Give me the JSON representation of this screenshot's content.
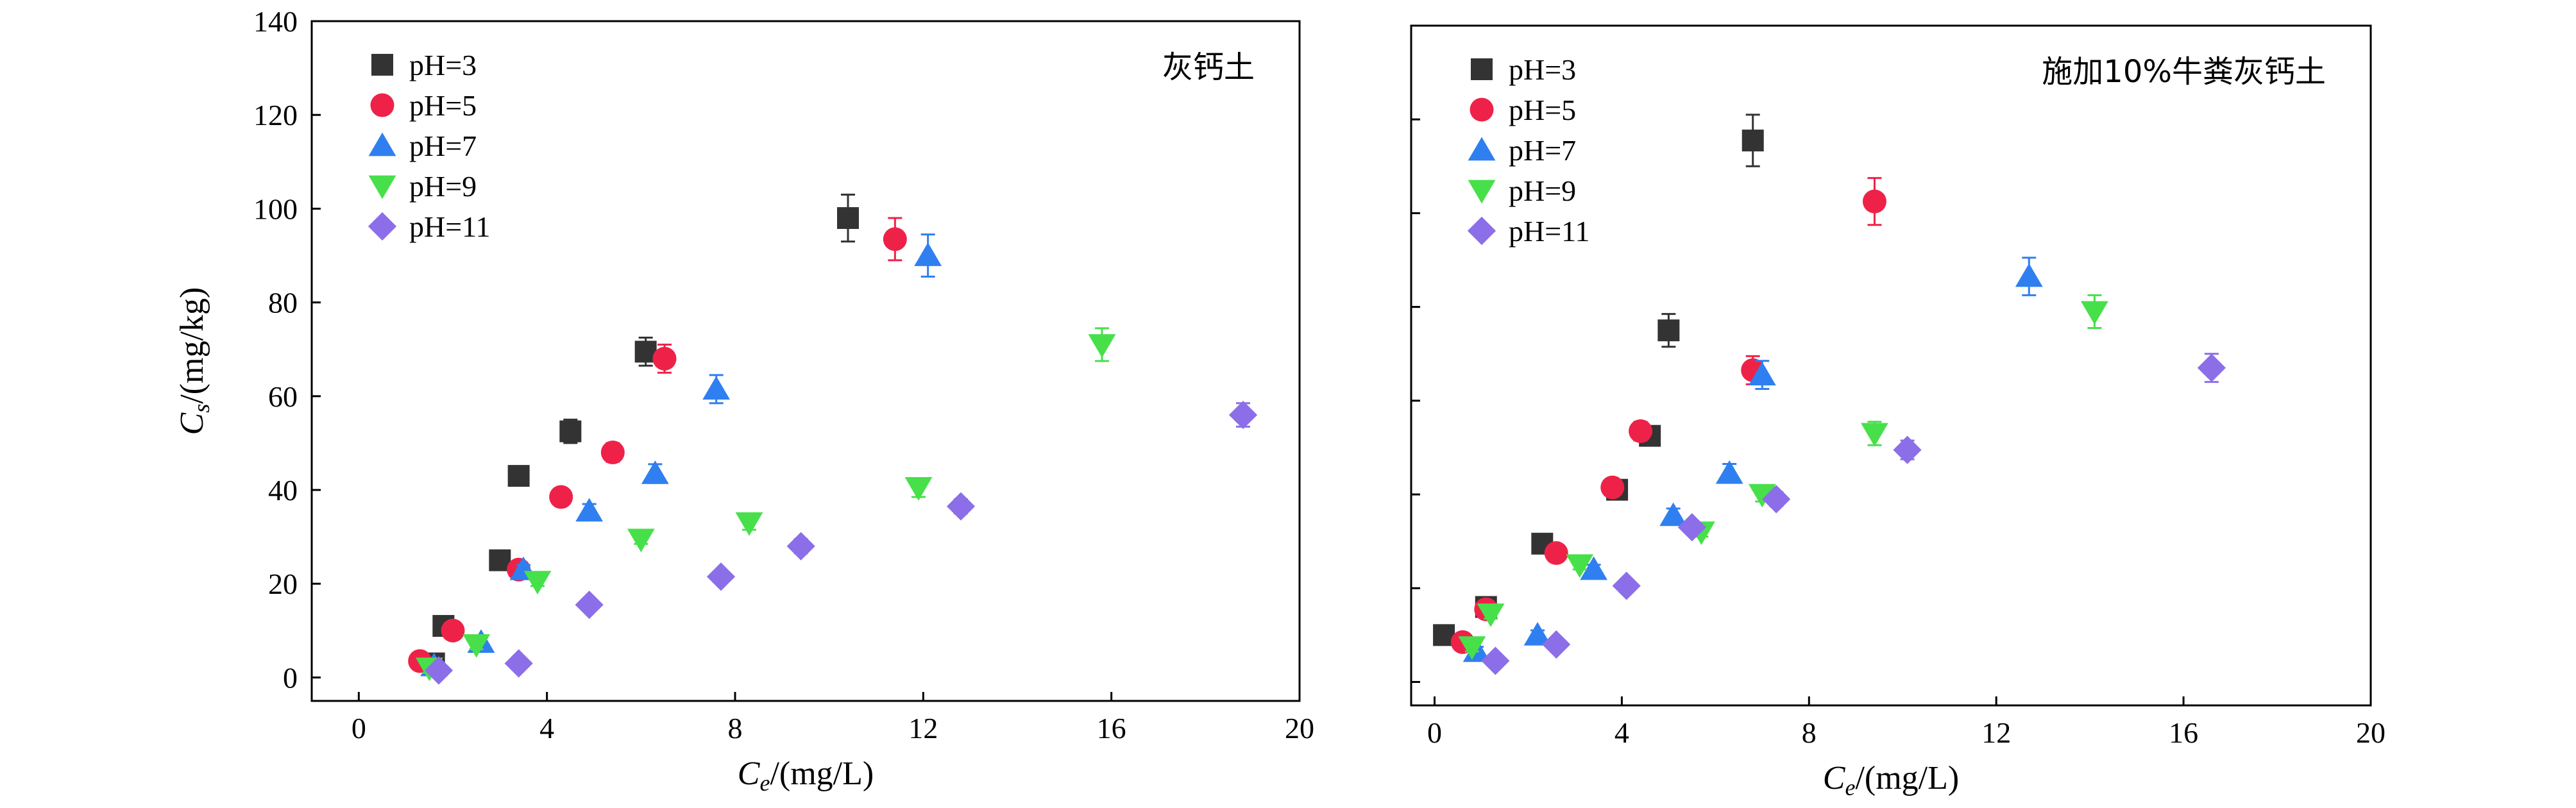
{
  "chart_data": [
    {
      "type": "scatter",
      "title": "灰钙土",
      "xlabel": "Ce/(mg/L)",
      "ylabel": "Cs/(mg/kg)",
      "xlim": [
        -1,
        20
      ],
      "ylim": [
        -5,
        140
      ],
      "x_ticks": [
        0,
        4,
        8,
        12,
        16,
        20
      ],
      "y_ticks": [
        0,
        20,
        40,
        60,
        80,
        100,
        120,
        140
      ],
      "legend_position": "top-left",
      "series": [
        {
          "name": "pH=3",
          "marker": "square",
          "color": "#333333",
          "x": [
            1.6,
            1.8,
            3.0,
            3.4,
            4.5,
            6.1,
            10.4
          ],
          "y": [
            3.0,
            11.0,
            25.0,
            43.0,
            52.5,
            69.5,
            98.0
          ],
          "err": [
            1,
            1,
            1,
            1.5,
            2.5,
            3,
            5
          ]
        },
        {
          "name": "pH=5",
          "marker": "circle",
          "color": "#ee2248",
          "x": [
            1.3,
            2.0,
            3.4,
            4.3,
            5.4,
            6.5,
            11.4
          ],
          "y": [
            3.5,
            10.0,
            23.0,
            38.5,
            48.0,
            68.0,
            93.5
          ],
          "err": [
            1,
            1,
            1,
            1,
            2,
            3,
            4.5
          ]
        },
        {
          "name": "pH=7",
          "marker": "triangle-up",
          "color": "#2f7ff0",
          "x": [
            1.6,
            2.6,
            3.5,
            4.9,
            6.3,
            7.6,
            12.1
          ],
          "y": [
            2.5,
            7.5,
            23.0,
            35.5,
            43.5,
            61.5,
            90.0
          ],
          "err": [
            1,
            1,
            1,
            1.5,
            2,
            3,
            4.5
          ]
        },
        {
          "name": "pH=9",
          "marker": "triangle-down",
          "color": "#47e04a",
          "x": [
            1.5,
            2.5,
            3.8,
            6.0,
            8.3,
            11.9,
            15.8
          ],
          "y": [
            2.0,
            7.0,
            20.5,
            29.5,
            33.0,
            40.5,
            71.0
          ],
          "err": [
            1,
            1,
            1,
            1,
            1.5,
            2,
            3.5
          ]
        },
        {
          "name": "pH=11",
          "marker": "diamond",
          "color": "#8c6ee8",
          "x": [
            1.7,
            3.4,
            4.9,
            7.7,
            9.4,
            12.8,
            18.8
          ],
          "y": [
            1.5,
            3.0,
            15.5,
            21.5,
            28.0,
            36.5,
            56.0
          ],
          "err": [
            1,
            1,
            1,
            1,
            1.5,
            1.5,
            2.5
          ]
        }
      ]
    },
    {
      "type": "scatter",
      "title": "施加10%牛粪灰钙土",
      "xlabel": "Ce/(mg/L)",
      "ylabel": "",
      "xlim": [
        -0.5,
        20
      ],
      "ylim": [
        -5,
        140
      ],
      "x_ticks": [
        0,
        4,
        8,
        12,
        16,
        20
      ],
      "y_ticks": [
        0,
        20,
        40,
        60,
        80,
        100,
        120,
        140
      ],
      "legend_position": "top-left",
      "series": [
        {
          "name": "pH=3",
          "marker": "square",
          "color": "#333333",
          "x": [
            0.2,
            1.1,
            2.3,
            3.9,
            4.6,
            5.0,
            6.8
          ],
          "y": [
            10.0,
            16.0,
            29.5,
            41.0,
            52.5,
            75.0,
            115.5
          ],
          "err": [
            1,
            1,
            1,
            1,
            1.5,
            3.5,
            5.5
          ]
        },
        {
          "name": "pH=5",
          "marker": "circle",
          "color": "#ee2248",
          "x": [
            0.6,
            1.1,
            2.6,
            3.8,
            4.4,
            6.8,
            9.4
          ],
          "y": [
            8.5,
            15.5,
            27.5,
            41.5,
            53.5,
            66.5,
            102.5
          ],
          "err": [
            1,
            1,
            1,
            1,
            2,
            3,
            5
          ]
        },
        {
          "name": "pH=7",
          "marker": "triangle-up",
          "color": "#2f7ff0",
          "x": [
            0.9,
            2.2,
            3.4,
            5.1,
            6.3,
            7.0,
            12.7
          ],
          "y": [
            6.5,
            10.0,
            24.0,
            35.5,
            44.5,
            65.5,
            86.5
          ],
          "err": [
            1,
            1,
            1,
            1.5,
            2,
            3,
            4
          ]
        },
        {
          "name": "pH=9",
          "marker": "triangle-down",
          "color": "#47e04a",
          "x": [
            0.8,
            1.2,
            3.1,
            5.7,
            7.0,
            9.4,
            14.1
          ],
          "y": [
            7.5,
            14.5,
            25.0,
            32.0,
            40.0,
            53.0,
            79.0
          ],
          "err": [
            1,
            1,
            1,
            1,
            1.5,
            2.5,
            3.5
          ]
        },
        {
          "name": "pH=11",
          "marker": "diamond",
          "color": "#8c6ee8",
          "x": [
            1.3,
            2.6,
            4.1,
            5.5,
            7.3,
            10.1,
            16.6
          ],
          "y": [
            4.5,
            8.0,
            20.5,
            33.0,
            39.0,
            49.5,
            67.0
          ],
          "err": [
            1,
            1,
            1,
            1,
            1.5,
            2,
            3
          ]
        }
      ]
    }
  ]
}
